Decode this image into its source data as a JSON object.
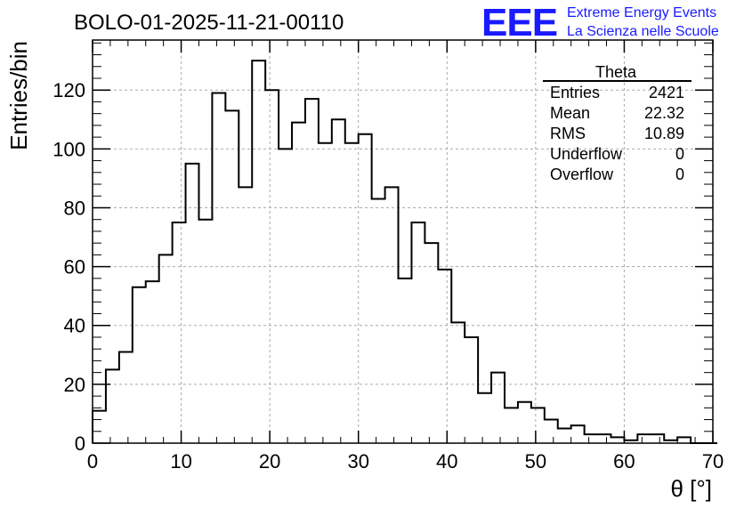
{
  "chart_data": {
    "type": "histogram",
    "title": "BOLO-01-2025-11-21-00110",
    "xlabel": "θ [°]",
    "ylabel": "Entries/bin",
    "xlim": [
      0,
      70
    ],
    "ylim": [
      0,
      137
    ],
    "grid": true,
    "bin_width": 1.5,
    "bin_start": 0,
    "values": [
      11,
      25,
      31,
      53,
      55,
      64,
      75,
      95,
      76,
      119,
      113,
      87,
      130,
      120,
      100,
      109,
      117,
      102,
      110,
      102,
      105,
      83,
      87,
      56,
      75,
      68,
      59,
      41,
      36,
      17,
      24,
      12,
      14,
      12,
      8,
      5,
      6,
      3,
      3,
      2,
      1,
      3,
      3,
      1,
      2,
      0,
      0
    ],
    "x_ticks": [
      "0",
      "10",
      "20",
      "30",
      "40",
      "50",
      "60",
      "70"
    ],
    "y_ticks": [
      "0",
      "20",
      "40",
      "60",
      "80",
      "100",
      "120"
    ]
  },
  "stats_box": {
    "name": "Theta",
    "rows": [
      {
        "label": "Entries",
        "value": "2421"
      },
      {
        "label": "Mean",
        "value": "22.32"
      },
      {
        "label": "RMS",
        "value": "10.89"
      },
      {
        "label": "Underflow",
        "value": "0"
      },
      {
        "label": "Overflow",
        "value": "0"
      }
    ]
  },
  "logo": {
    "mark": "EEE",
    "line1": "Extreme Energy Events",
    "line2": "La Scienza nelle Scuole",
    "color": "#1a1aff"
  }
}
